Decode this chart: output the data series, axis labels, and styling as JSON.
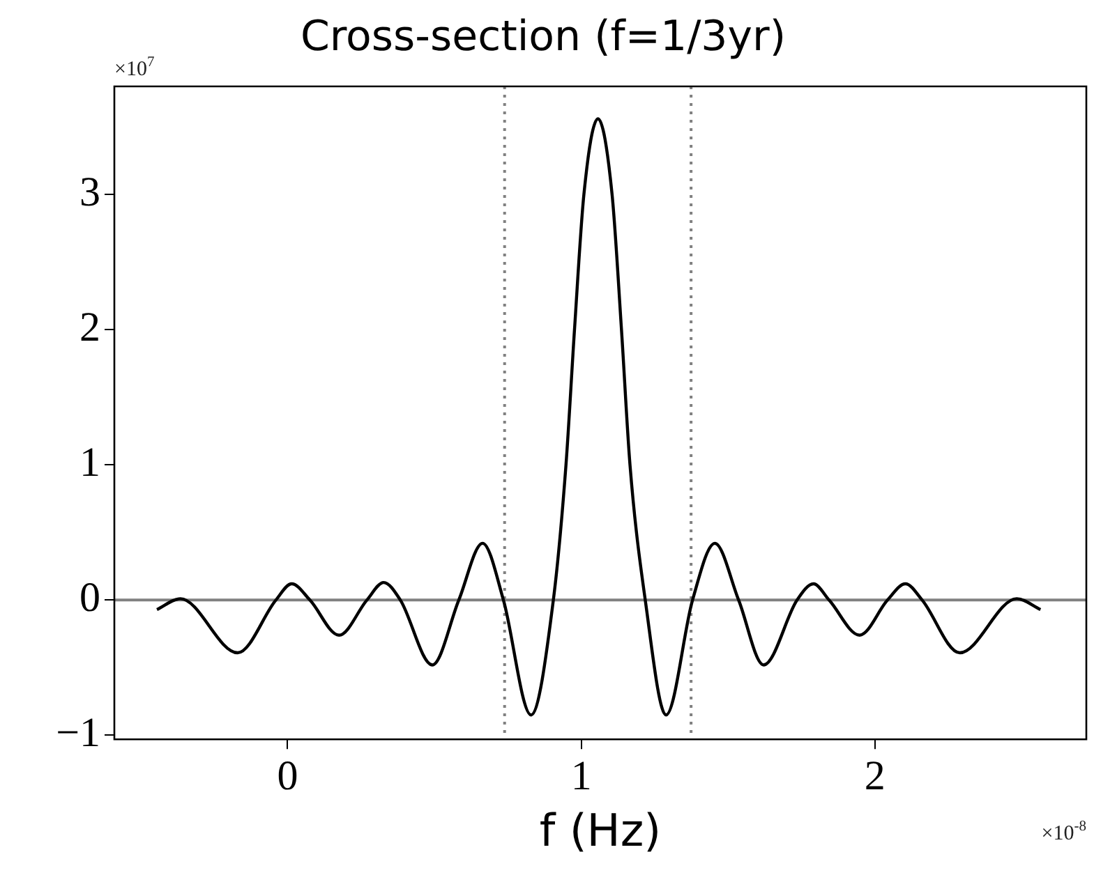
{
  "chart_data": {
    "type": "line",
    "title": "Cross-section (f=1/3yr)",
    "xlabel": "f (Hz)",
    "annotations": [
      "×10$^{7}$",
      "×10$^{-8}$"
    ],
    "series": [
      {
        "color": "#000000",
        "x": [
          -0.445,
          -0.365,
          -0.17,
          -0.04,
          0.014,
          0.076,
          0.175,
          0.27,
          0.327,
          0.384,
          0.493,
          0.583,
          0.664,
          0.735,
          0.829,
          0.905,
          0.948,
          0.977,
          1.009,
          1.057,
          1.105,
          1.137,
          1.166,
          1.218,
          1.289,
          1.379,
          1.455,
          1.536,
          1.621,
          1.735,
          1.791,
          1.844,
          1.948,
          2.043,
          2.104,
          2.161,
          2.289,
          2.483,
          2.564
        ],
        "values": [
          -0.07,
          0.01,
          -0.39,
          0,
          0.12,
          0,
          -0.26,
          0,
          0.13,
          0,
          -0.48,
          0,
          0.42,
          0,
          -0.85,
          0,
          1,
          2,
          3,
          3.56,
          3,
          2,
          1,
          0,
          -0.85,
          0,
          0.42,
          0,
          -0.48,
          0,
          0.12,
          0,
          -0.26,
          0,
          0.12,
          0,
          -0.39,
          0.01,
          -0.07
        ]
      }
    ],
    "xlim": [
      -0.59,
      2.72
    ],
    "ylim": [
      -1.03,
      3.8
    ],
    "xticks": [
      0,
      1,
      2
    ],
    "yticks": [
      -1,
      0,
      1,
      2,
      3
    ],
    "ref_lines": [
      {
        "axis": "y",
        "value": 0,
        "color": "#808080",
        "line_style": "solid"
      },
      {
        "axis": "x",
        "value": 0.739,
        "color": "#808080",
        "line_style": "dotted"
      },
      {
        "axis": "x",
        "value": 1.374,
        "color": "#808080",
        "line_style": "dotted"
      }
    ],
    "grid": false,
    "legend": false,
    "marker": "none",
    "line_style": "solid"
  }
}
